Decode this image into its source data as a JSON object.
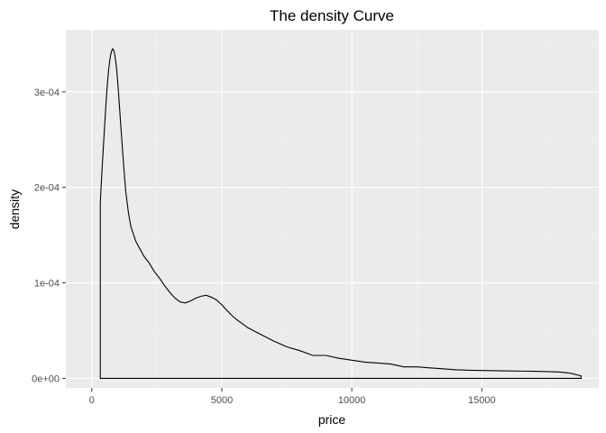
{
  "chart_data": {
    "type": "area",
    "title": "The density Curve",
    "xlabel": "price",
    "ylabel": "density",
    "xlim": [
      -1000,
      19500
    ],
    "ylim": [
      -1e-05,
      0.000365
    ],
    "x_ticks": [
      0,
      5000,
      10000,
      15000
    ],
    "x_tick_labels": [
      "0",
      "5000",
      "10000",
      "15000"
    ],
    "y_ticks": [
      0,
      0.0001,
      0.0002,
      0.0003
    ],
    "y_tick_labels": [
      "0e+00",
      "1e-04",
      "2e-04",
      "3e-04"
    ],
    "grid": true,
    "series": [
      {
        "x": [
          326,
          330,
          340,
          360,
          400,
          450,
          500,
          550,
          600,
          650,
          700,
          750,
          800,
          850,
          900,
          950,
          1000,
          1050,
          1100,
          1200,
          1300,
          1400,
          1500,
          1600,
          1700,
          1800,
          2000,
          2200,
          2400,
          2600,
          2800,
          3000,
          3200,
          3400,
          3600,
          3800,
          4000,
          4200,
          4400,
          4600,
          4800,
          5000,
          5200,
          5500,
          6000,
          6500,
          7000,
          7500,
          8000,
          8500,
          9000,
          9500,
          10000,
          10500,
          11000,
          11500,
          12000,
          12500,
          13000,
          13500,
          14000,
          14500,
          15000,
          15500,
          16000,
          16500,
          17000,
          17500,
          18000,
          18300,
          18500,
          18823
        ],
        "y": [
          0.000183,
          0.000186,
          0.000192,
          0.000202,
          0.000222,
          0.000245,
          0.000268,
          0.00029,
          0.000309,
          0.000324,
          0.000335,
          0.000342,
          0.000345,
          0.000343,
          0.000336,
          0.000325,
          0.000309,
          0.00029,
          0.00027,
          0.000232,
          0.000197,
          0.000175,
          0.000159,
          0.000151,
          0.000143,
          0.000138,
          0.000128,
          0.000121,
          0.000112,
          0.000105,
          9.7e-05,
          9e-05,
          8.4e-05,
          8e-05,
          7.9e-05,
          8.1e-05,
          8.4e-05,
          8.6e-05,
          8.7e-05,
          8.5e-05,
          8.2e-05,
          7.7e-05,
          7.1e-05,
          6.3e-05,
          5.3e-05,
          4.6e-05,
          3.9e-05,
          3.3e-05,
          2.9e-05,
          2.4e-05,
          2.4e-05,
          2.1e-05,
          1.9e-05,
          1.7e-05,
          1.6e-05,
          1.5e-05,
          1.2e-05,
          1.2e-05,
          1.1e-05,
          1e-05,
          9e-06,
          8.5e-06,
          8.2e-06,
          8e-06,
          7.8e-06,
          7.6e-06,
          7.4e-06,
          7.1e-06,
          6.6e-06,
          5.8e-06,
          4.8e-06,
          2.5e-06
        ]
      }
    ]
  }
}
